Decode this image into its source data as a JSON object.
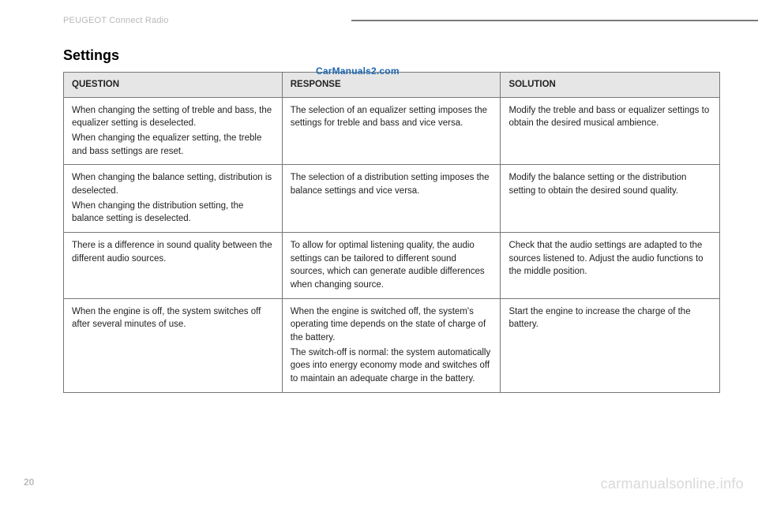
{
  "header": {
    "section_label": "PEUGEOT Connect Radio",
    "title": "Settings",
    "watermark_top": "CarManuals2.com",
    "watermark_bottom": "carmanualsonline.info",
    "page_number": "20"
  },
  "table": {
    "headers": {
      "question": "QUESTION",
      "response": "RESPONSE",
      "solution": "SOLUTION"
    },
    "rows": [
      {
        "q1": "When changing the setting of treble and bass, the equalizer setting is deselected.",
        "q2": "When changing the equalizer setting, the treble and bass settings are reset.",
        "r": "The selection of an equalizer setting imposes the settings for treble and bass and vice versa.",
        "s": "Modify the treble and bass or equalizer settings to obtain the desired musical ambience."
      },
      {
        "q1": "When changing the balance setting, distribution is deselected.",
        "q2": "When changing the distribution setting, the balance setting is deselected.",
        "r": "The selection of a distribution setting imposes the balance settings and vice versa.",
        "s": "Modify the balance setting or the distribution setting to obtain the desired sound quality."
      },
      {
        "q1": "There is a difference in sound quality between the different audio sources.",
        "q2": "",
        "r": "To allow for optimal listening quality, the audio settings can be tailored to different sound sources, which can generate audible differences when changing source.",
        "s": "Check that the audio settings are adapted to the sources listened to. Adjust the audio functions to the middle position."
      },
      {
        "q1": "When the engine is off, the system switches off after several minutes of use.",
        "q2": "",
        "r1": "When the engine is switched off, the system's operating time depends on the state of charge of the battery.",
        "r2": "The switch-off is normal: the system automatically goes into energy economy mode and switches off to maintain an adequate charge in the battery.",
        "s": "Start the engine to increase the charge of the battery."
      }
    ]
  }
}
